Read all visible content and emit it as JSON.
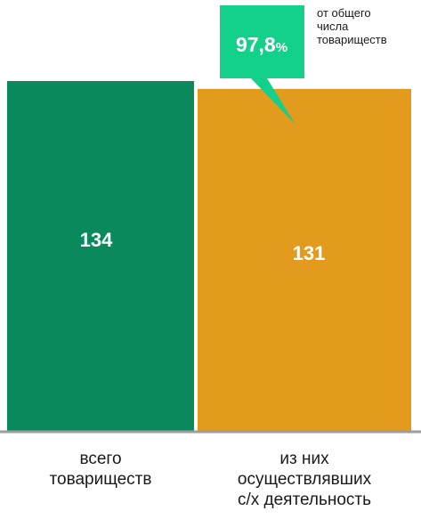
{
  "chart_data": {
    "type": "bar",
    "categories": [
      "всего\nтовариществ",
      "из них\nосуществлявших\nс/х деятельность"
    ],
    "values": [
      134,
      131
    ],
    "value_labels": [
      "134",
      "131"
    ],
    "ylim": [
      0,
      140
    ],
    "grid": false,
    "legend": "none",
    "colors": [
      "#0a8a5c",
      "#e29b1c"
    ],
    "axis_color": "#9e9e9e",
    "callout": {
      "value": "97,8",
      "unit": "%",
      "note": "от общего\nчисла\nтовариществ",
      "color": "#13d08a",
      "text_color": "#ffffff",
      "points_to": 1
    }
  }
}
